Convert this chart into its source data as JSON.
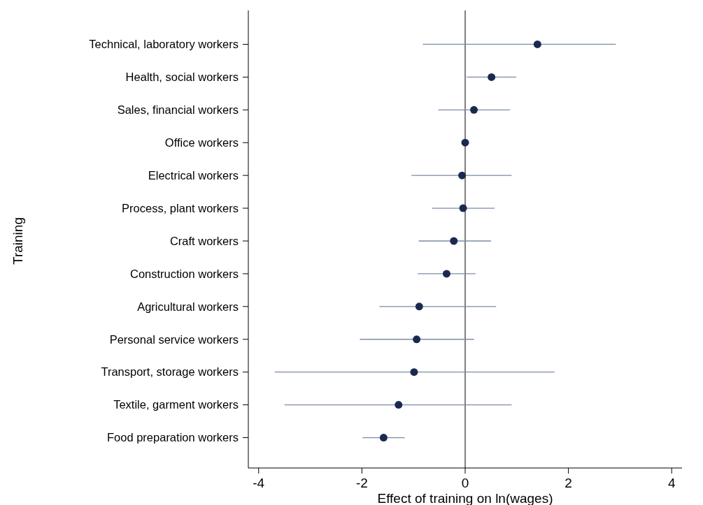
{
  "chart_data": {
    "type": "scatter",
    "orientation": "horizontal",
    "xlabel": "Effect of training on ln(wages)",
    "ylabel": "Training",
    "categories": [
      "Technical, laboratory workers",
      "Health, social workers",
      "Sales, financial workers",
      "Office workers",
      "Electrical workers",
      "Process, plant workers",
      "Craft workers",
      "Construction workers",
      "Agricultural workers",
      "Personal service workers",
      "Transport, storage workers",
      "Textile, garment workers",
      "Food preparation workers"
    ],
    "values": [
      1.4,
      0.51,
      0.17,
      0,
      -0.06,
      -0.04,
      -0.22,
      -0.36,
      -0.89,
      -0.94,
      -0.99,
      -1.29,
      -1.58
    ],
    "errors": [
      [
        -0.82,
        2.92
      ],
      [
        0.03,
        0.99
      ],
      [
        -0.52,
        0.87
      ],
      null,
      [
        -1.04,
        0.9
      ],
      [
        -0.64,
        0.57
      ],
      [
        -0.9,
        0.5
      ],
      [
        -0.92,
        0.2
      ],
      [
        -1.66,
        0.6
      ],
      [
        -2.04,
        0.17
      ],
      [
        -3.69,
        1.73
      ],
      [
        -3.5,
        0.9
      ],
      [
        -1.99,
        -1.17
      ]
    ],
    "color": "#1a2a4f",
    "marker": "circle",
    "xlim": [
      -4.2,
      4.2
    ],
    "xticks": [
      -4,
      -2,
      0,
      2,
      4
    ],
    "ref_lines": [
      {
        "axis": "x",
        "value": 0,
        "color": "#000000"
      }
    ]
  }
}
